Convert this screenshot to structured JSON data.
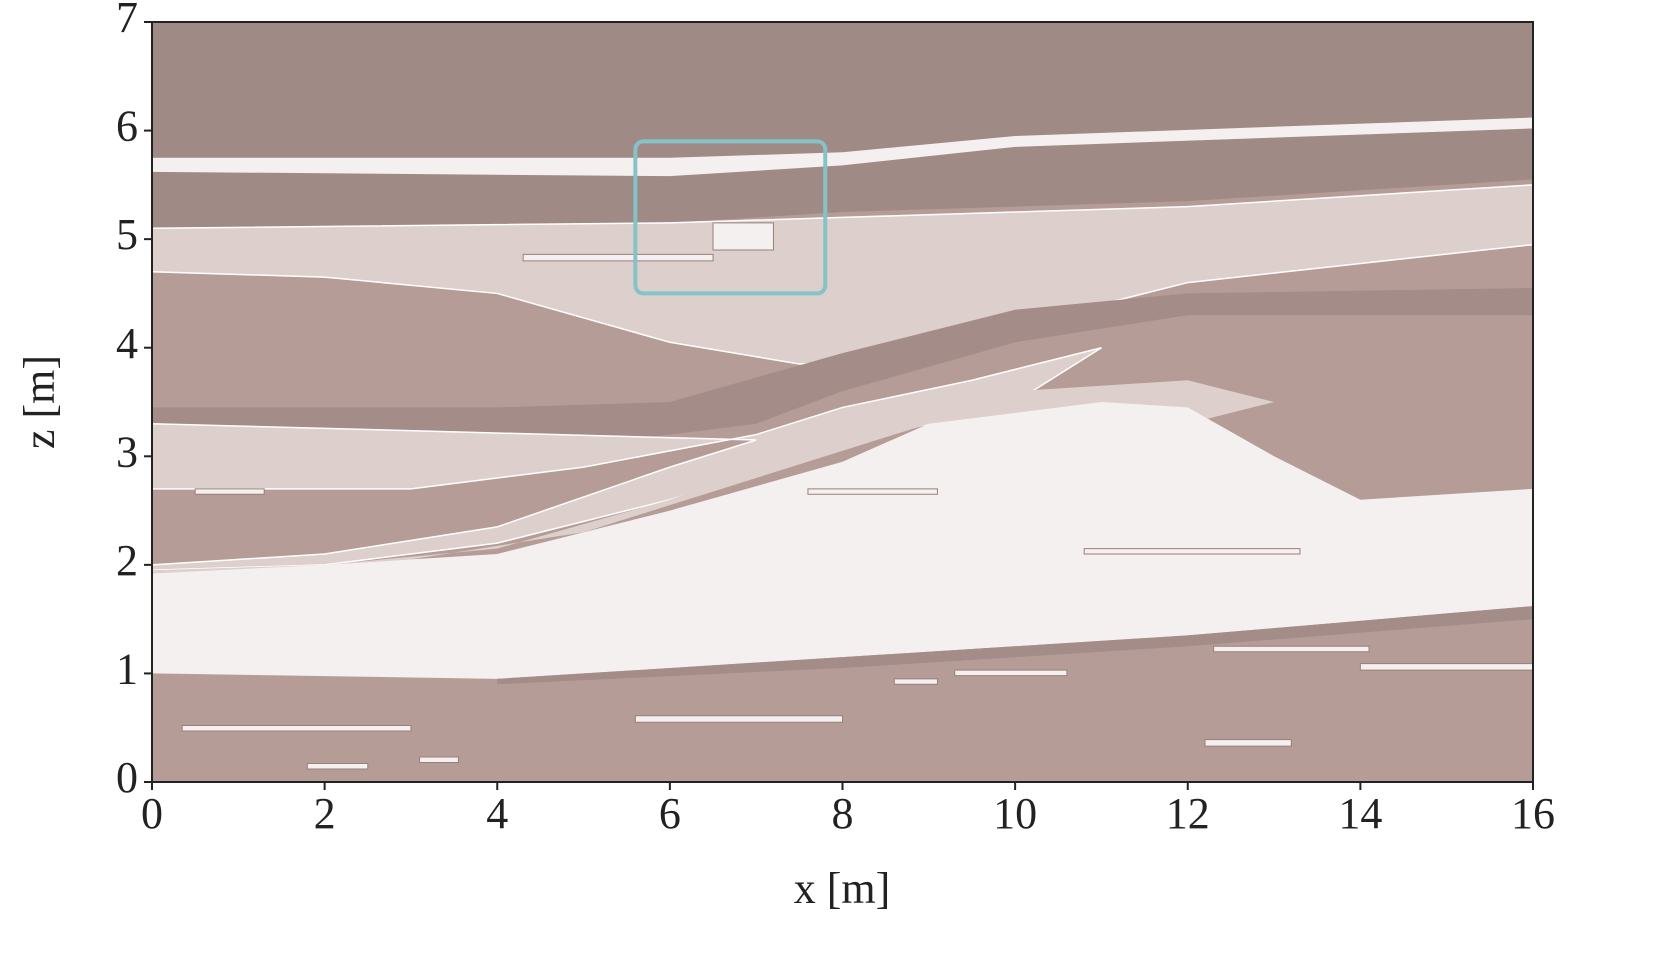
{
  "chart_data": {
    "type": "facies",
    "xlabel": "x [m]",
    "ylabel": "z [m]",
    "xlim": [
      0,
      16
    ],
    "ylim": [
      0,
      7
    ],
    "xticks": [
      0,
      2,
      4,
      6,
      8,
      10,
      12,
      14,
      16
    ],
    "yticks": [
      0,
      1,
      2,
      3,
      4,
      5,
      6,
      7
    ],
    "highlight_box": {
      "x": [
        5.6,
        7.8
      ],
      "y": [
        4.5,
        5.9
      ],
      "color": "#85c3c9"
    }
  }
}
